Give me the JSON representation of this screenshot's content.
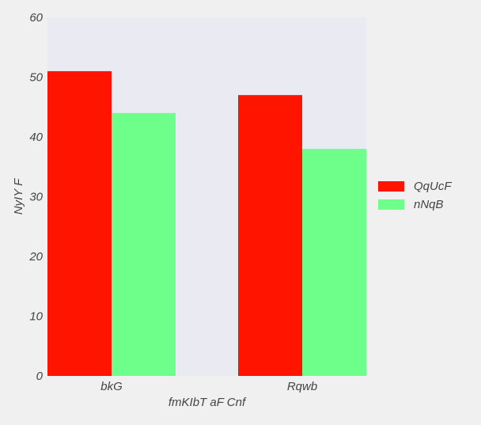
{
  "chart_data": {
    "type": "bar",
    "title": "",
    "xlabel": "fmKIbT aF Cnf",
    "ylabel": "NyIY F",
    "categories": [
      "bkG",
      "Rqwb"
    ],
    "series": [
      {
        "name": "QqUcF",
        "values": [
          51,
          47
        ],
        "color": "#ff1400"
      },
      {
        "name": "nNqB",
        "values": [
          44,
          38
        ],
        "color": "#6eff8a"
      }
    ],
    "ylim": [
      0,
      60
    ],
    "yticks": [
      "0",
      "10",
      "20",
      "30",
      "40",
      "50",
      "60"
    ],
    "grid": false,
    "legend_position": "right",
    "plot_background": "#eaeaf2",
    "page_background": "#f0f0f0"
  }
}
